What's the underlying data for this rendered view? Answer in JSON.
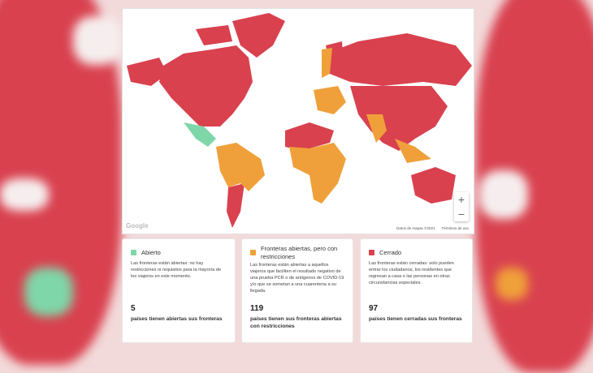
{
  "colors": {
    "open": "#7fd6a8",
    "restricted": "#f0a03a",
    "closed": "#d9414f",
    "ocean": "#ffffff"
  },
  "map": {
    "logo": "Google",
    "attribution": "Datos de mapas ©2021",
    "terms": "Términos de uso",
    "zoom_in": "+",
    "zoom_out": "−"
  },
  "cards": [
    {
      "title": "Abierto",
      "description": "Las fronteras están abiertas: no hay restricciones ni requisitos para la mayoría de los viajeros en este momento.",
      "count": "5",
      "count_label": "países tienen abiertas sus fronteras"
    },
    {
      "title": "Fronteras abiertas, pero con restricciones",
      "description": "Las fronteras están abiertas a aquellos viajeros que faciliten el resultado negativo de una prueba PCR o de antígenos de COVID-19 y/o que se sometan a una cuarentena a su llegada.",
      "count": "119",
      "count_label": "países tienen sus fronteras abiertas con restricciones"
    },
    {
      "title": "Cerrado",
      "description": "Las fronteras están cerradas: solo pueden entrar los ciudadanos, los residentes que regresan a casa o las personas en otras circunstancias especiales.",
      "count": "97",
      "count_label": "países tienen cerradas sus fronteras"
    }
  ]
}
